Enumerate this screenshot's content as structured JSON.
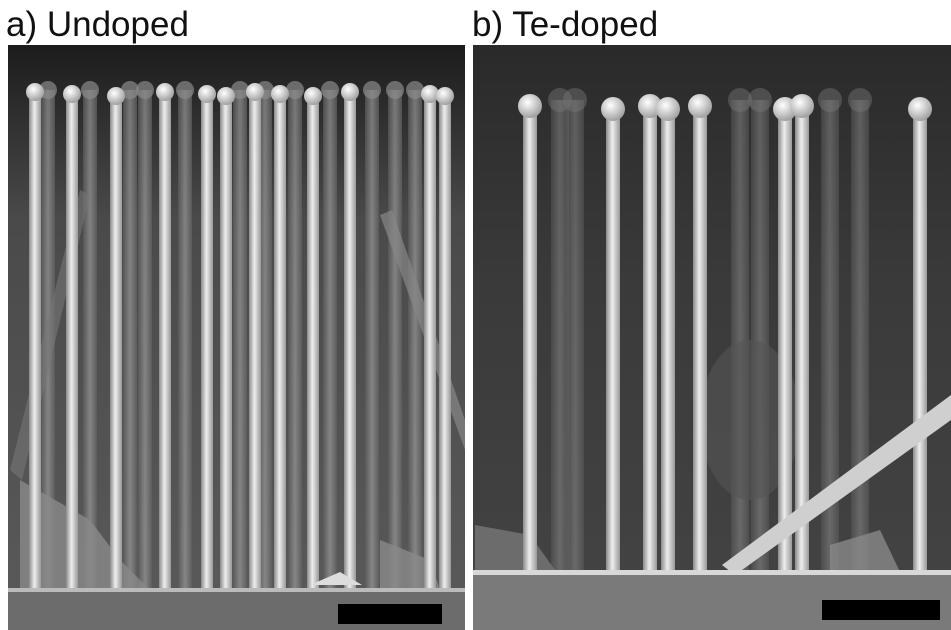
{
  "panels": [
    {
      "label": "a) Undoped"
    },
    {
      "label": "b) Te-doped"
    }
  ]
}
